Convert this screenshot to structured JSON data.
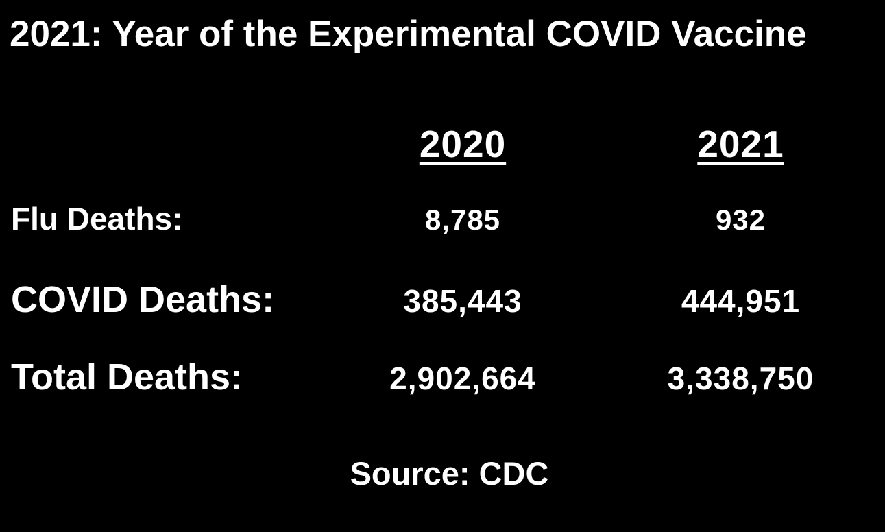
{
  "title": "2021: Year of the Experimental COVID Vaccine",
  "source_note": "Source: CDC",
  "colors": {
    "background": "#000000",
    "text": "#ffffff"
  },
  "chart_data": {
    "type": "table",
    "title": "2021: Year of the Experimental COVID Vaccine",
    "columns": [
      "2020",
      "2021"
    ],
    "rows": [
      {
        "label": "Flu Deaths:",
        "values": [
          "8,785",
          "932"
        ],
        "numeric": [
          8785,
          932
        ]
      },
      {
        "label": "COVID Deaths:",
        "values": [
          "385,443",
          "444,951"
        ],
        "numeric": [
          385443,
          444951
        ]
      },
      {
        "label": "Total Deaths:",
        "values": [
          "2,902,664",
          "3,338,750"
        ],
        "numeric": [
          2902664,
          3338750
        ]
      }
    ],
    "source": "Source: CDC",
    "layout": {
      "style": "black background, white bold text, no gridlines",
      "header_underline": true
    }
  }
}
